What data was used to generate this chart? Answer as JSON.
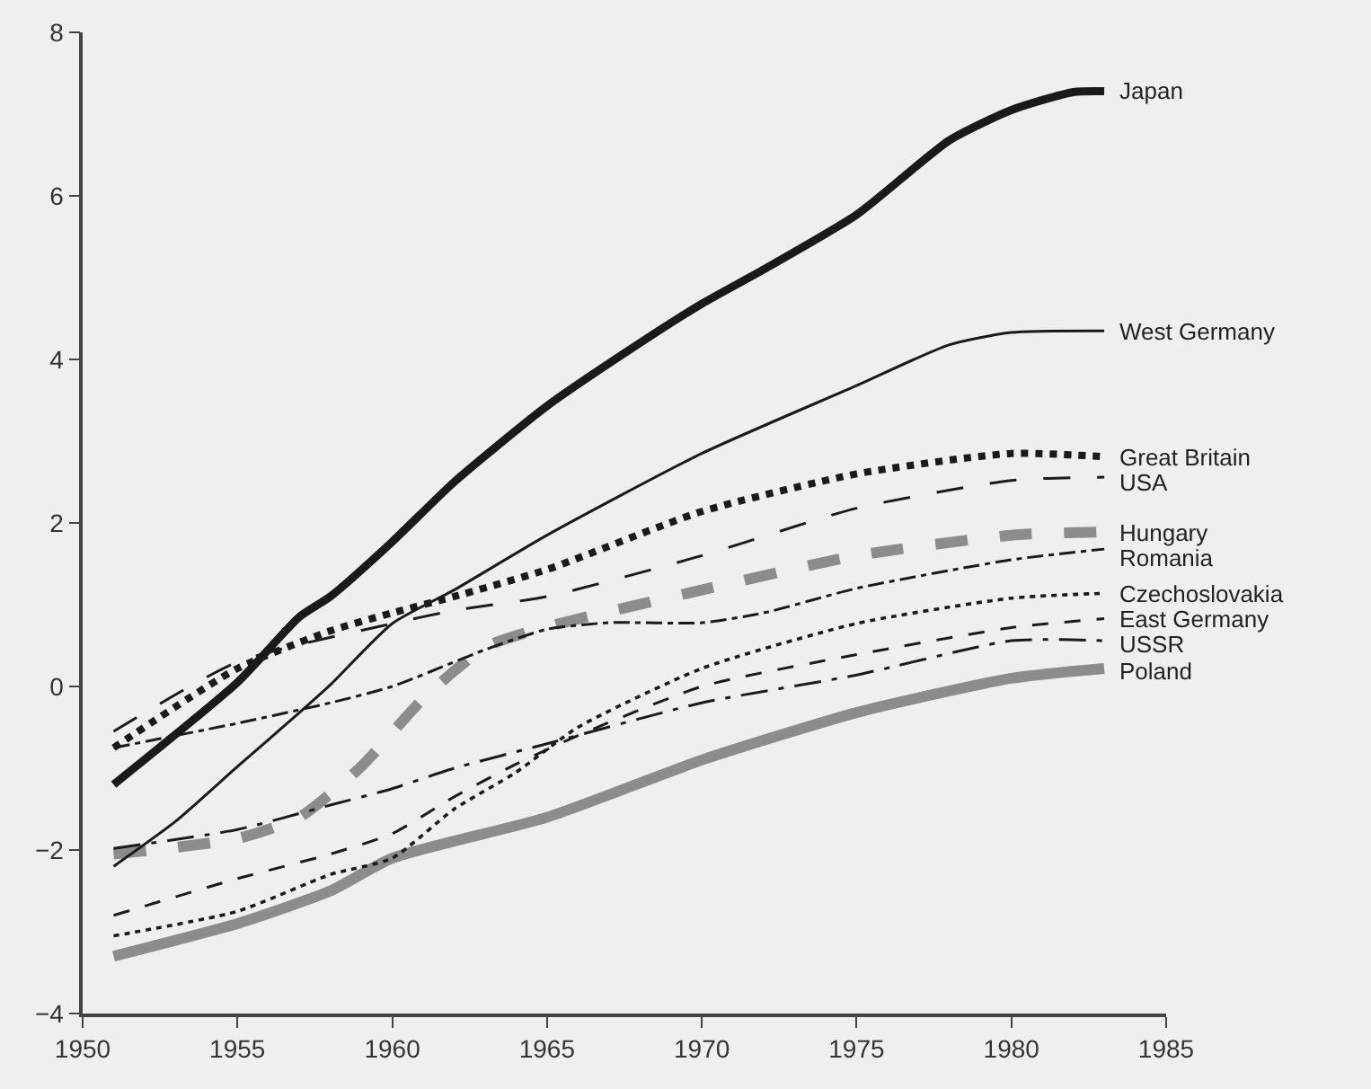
{
  "chart_data": {
    "type": "line",
    "xlim": [
      1950,
      1985
    ],
    "xticks": [
      1950,
      1955,
      1960,
      1965,
      1970,
      1975,
      1980,
      1985
    ],
    "ylim": [
      -4,
      8
    ],
    "yticks": [
      -4,
      -2,
      0,
      2,
      4,
      6,
      8
    ],
    "grid": false,
    "legend": false,
    "marker": "none",
    "series": [
      {
        "name": "Japan",
        "color": "#1a1a1a",
        "line_style": "solid",
        "x": [
          1951,
          1955,
          1957,
          1958,
          1960,
          1962,
          1965,
          1968,
          1970,
          1972,
          1975,
          1978,
          1980,
          1982,
          1983
        ],
        "values": [
          -1.2,
          0.05,
          0.85,
          1.1,
          1.77,
          2.5,
          3.43,
          4.2,
          4.68,
          5.1,
          5.77,
          6.68,
          7.05,
          7.27,
          7.28
        ]
      },
      {
        "name": "West Germany",
        "color": "#1a1a1a",
        "line_style": "solid",
        "x": [
          1951,
          1953,
          1955,
          1957,
          1958,
          1960,
          1962,
          1965,
          1970,
          1975,
          1978,
          1980,
          1983
        ],
        "values": [
          -2.2,
          -1.65,
          -0.98,
          -0.32,
          0.02,
          0.77,
          1.18,
          1.85,
          2.85,
          3.68,
          4.18,
          4.33,
          4.35
        ]
      },
      {
        "name": "Great Britain",
        "color": "#1a1a1a",
        "line_style": "dotted",
        "x": [
          1951,
          1955,
          1958,
          1960,
          1962,
          1965,
          1970,
          1975,
          1980,
          1983
        ],
        "values": [
          -0.75,
          0.22,
          0.68,
          0.9,
          1.1,
          1.43,
          2.14,
          2.6,
          2.85,
          2.81
        ]
      },
      {
        "name": "USA",
        "color": "#1a1a1a",
        "line_style": "longdash",
        "x": [
          1951,
          1955,
          1960,
          1962,
          1965,
          1970,
          1975,
          1980,
          1983
        ],
        "values": [
          -0.55,
          0.3,
          0.77,
          0.93,
          1.1,
          1.6,
          2.18,
          2.52,
          2.56
        ]
      },
      {
        "name": "Hungary",
        "color": "#8c8c8c",
        "line_style": "dashed",
        "x": [
          1951,
          1955,
          1957,
          1959,
          1961,
          1963,
          1965,
          1970,
          1975,
          1980,
          1983
        ],
        "values": [
          -2.05,
          -1.86,
          -1.6,
          -0.98,
          -0.15,
          0.48,
          0.73,
          1.18,
          1.6,
          1.85,
          1.89
        ]
      },
      {
        "name": "Romania",
        "color": "#1a1a1a",
        "line_style": "dashdot",
        "x": [
          1951,
          1955,
          1958,
          1960,
          1963,
          1965,
          1967,
          1970,
          1972,
          1975,
          1980,
          1983
        ],
        "values": [
          -0.75,
          -0.45,
          -0.2,
          0,
          0.45,
          0.7,
          0.78,
          0.78,
          0.9,
          1.2,
          1.55,
          1.68
        ]
      },
      {
        "name": "Czechoslovakia",
        "color": "#1a1a1a",
        "line_style": "dotted",
        "x": [
          1951,
          1955,
          1958,
          1960,
          1962,
          1964,
          1966,
          1970,
          1975,
          1980,
          1983
        ],
        "values": [
          -3.05,
          -2.75,
          -2.3,
          -2.1,
          -1.5,
          -1.05,
          -0.5,
          0.22,
          0.77,
          1.08,
          1.14
        ]
      },
      {
        "name": "East Germany",
        "color": "#1a1a1a",
        "line_style": "dashed",
        "x": [
          1951,
          1955,
          1958,
          1960,
          1962,
          1964,
          1966,
          1970,
          1975,
          1980,
          1983
        ],
        "values": [
          -2.8,
          -2.35,
          -2.05,
          -1.8,
          -1.35,
          -0.95,
          -0.6,
          0.0,
          0.39,
          0.72,
          0.83
        ]
      },
      {
        "name": "USSR",
        "color": "#1a1a1a",
        "line_style": "longdashdot",
        "x": [
          1951,
          1955,
          1958,
          1960,
          1962,
          1965,
          1970,
          1975,
          1980,
          1983
        ],
        "values": [
          -1.98,
          -1.75,
          -1.45,
          -1.25,
          -1.0,
          -0.7,
          -0.2,
          0.14,
          0.56,
          0.56
        ]
      },
      {
        "name": "Poland",
        "color": "#8c8c8c",
        "line_style": "solid",
        "x": [
          1951,
          1955,
          1958,
          1960,
          1965,
          1970,
          1975,
          1980,
          1983
        ],
        "values": [
          -3.3,
          -2.9,
          -2.5,
          -2.1,
          -1.6,
          -0.9,
          -0.32,
          0.1,
          0.22
        ]
      }
    ]
  }
}
